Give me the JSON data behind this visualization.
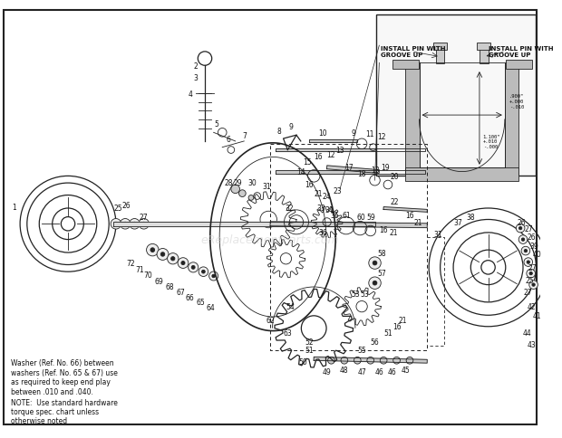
{
  "background_color": "#ffffff",
  "border_color": "#000000",
  "fig_width": 6.2,
  "fig_height": 4.85,
  "dpi": 100,
  "note_text": "NOTE:  Use standard hardware\ntorque spec. chart unless\notherwise noted",
  "washer_note": "Washer (Ref. No. 66) between\nwashers (Ref. No. 65 & 67) use\nas required to keep end play\nbetween .010 and .040.",
  "install_pin_left": "INSTALL PIN WITH\nGROOVE UP",
  "install_pin_right": "INSTALL PIN WITH\nGROOVE UP",
  "dim1": ".900\"\n+.000\n-.010",
  "dim2": "1.100\"\n+.010\n-.000"
}
